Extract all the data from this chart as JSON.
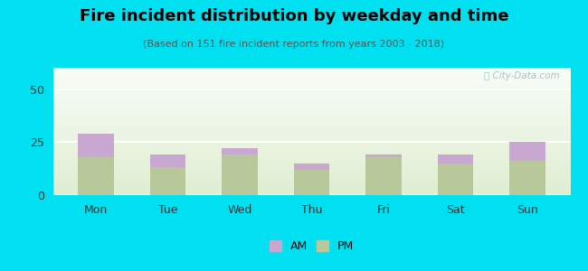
{
  "title": "Fire incident distribution by weekday and time",
  "subtitle": "(Based on 151 fire incident reports from years 2003 - 2018)",
  "days": [
    "Mon",
    "Tue",
    "Wed",
    "Thu",
    "Fri",
    "Sat",
    "Sun"
  ],
  "pm_values": [
    18,
    13,
    19,
    12,
    18,
    15,
    16
  ],
  "am_values": [
    11,
    6,
    3,
    3,
    1,
    4,
    9
  ],
  "am_color": "#c8a8d0",
  "pm_color": "#b8c89a",
  "background_outer": "#00e0f0",
  "ylim": [
    0,
    60
  ],
  "yticks": [
    0,
    25,
    50
  ],
  "bar_width": 0.5,
  "title_fontsize": 13,
  "subtitle_fontsize": 8,
  "tick_fontsize": 9,
  "legend_fontsize": 9,
  "watermark": "City-Data.com"
}
